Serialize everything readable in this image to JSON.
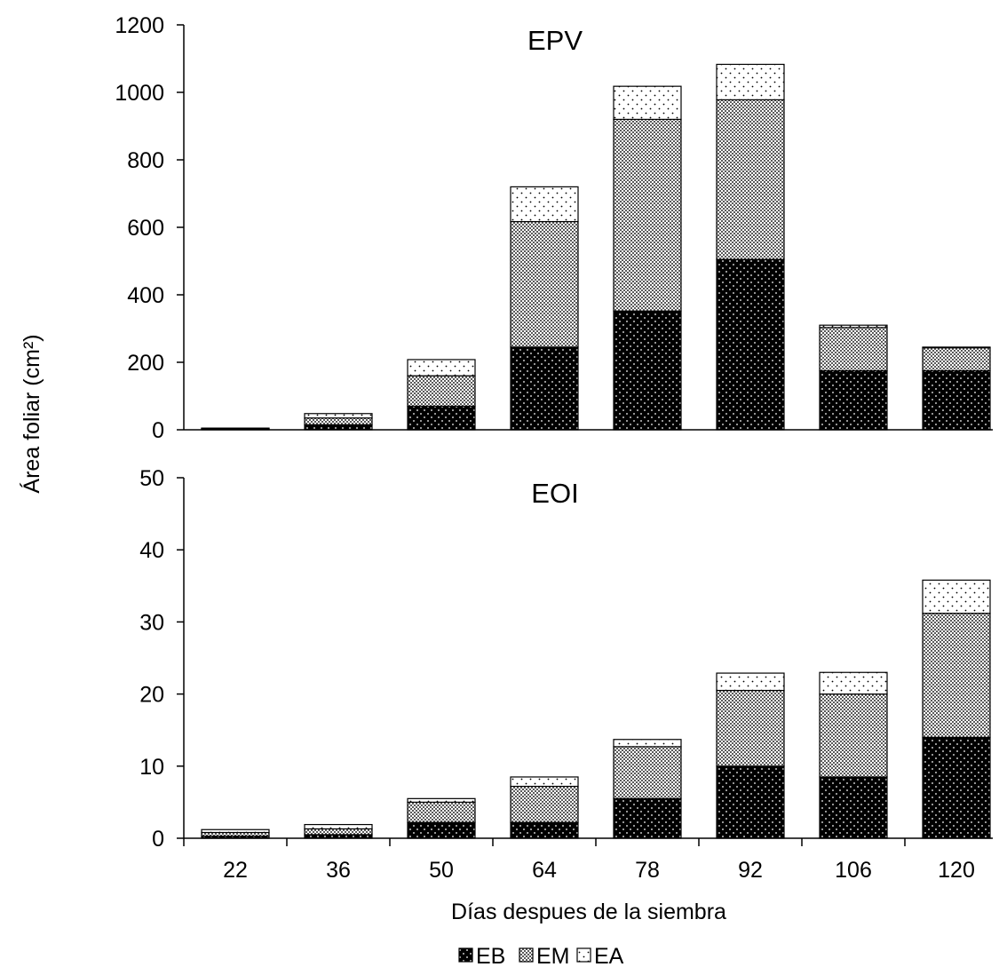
{
  "ylabel": "Área foliar (cm²)",
  "xlabel": "Días despues de la siembra",
  "legend": {
    "placement": "bottom-center",
    "entries": [
      "EB",
      "EM",
      "EA"
    ]
  },
  "colors": {
    "EB": "#000000",
    "EM": "#9a9a9a",
    "EA": "#ffffff",
    "axis": "#000000"
  },
  "chart_data": [
    {
      "type": "bar",
      "stacked": true,
      "title": "EPV",
      "categories": [
        "22",
        "36",
        "50",
        "64",
        "78",
        "92",
        "106",
        "120"
      ],
      "ylim": [
        0,
        1200
      ],
      "yticks": [
        0,
        200,
        400,
        600,
        800,
        1000,
        1200
      ],
      "series": [
        {
          "name": "EB",
          "values": [
            2,
            15,
            70,
            245,
            352,
            505,
            175,
            175
          ]
        },
        {
          "name": "EM",
          "values": [
            2,
            20,
            90,
            372,
            568,
            473,
            128,
            68
          ]
        },
        {
          "name": "EA",
          "values": [
            1,
            13,
            48,
            103,
            98,
            105,
            7,
            2
          ]
        }
      ]
    },
    {
      "type": "bar",
      "stacked": true,
      "title": "EOI",
      "categories": [
        "22",
        "36",
        "50",
        "64",
        "78",
        "92",
        "106",
        "120"
      ],
      "ylim": [
        0,
        50
      ],
      "yticks": [
        0,
        10,
        20,
        30,
        40,
        50
      ],
      "series": [
        {
          "name": "EB",
          "values": [
            0.3,
            0.5,
            2.2,
            2.2,
            5.5,
            10,
            8.5,
            14
          ]
        },
        {
          "name": "EM",
          "values": [
            0.5,
            0.8,
            2.8,
            5,
            7.2,
            10.5,
            11.5,
            17.2
          ]
        },
        {
          "name": "EA",
          "values": [
            0.4,
            0.6,
            0.5,
            1.3,
            1,
            2.4,
            3,
            4.6
          ]
        }
      ]
    }
  ]
}
